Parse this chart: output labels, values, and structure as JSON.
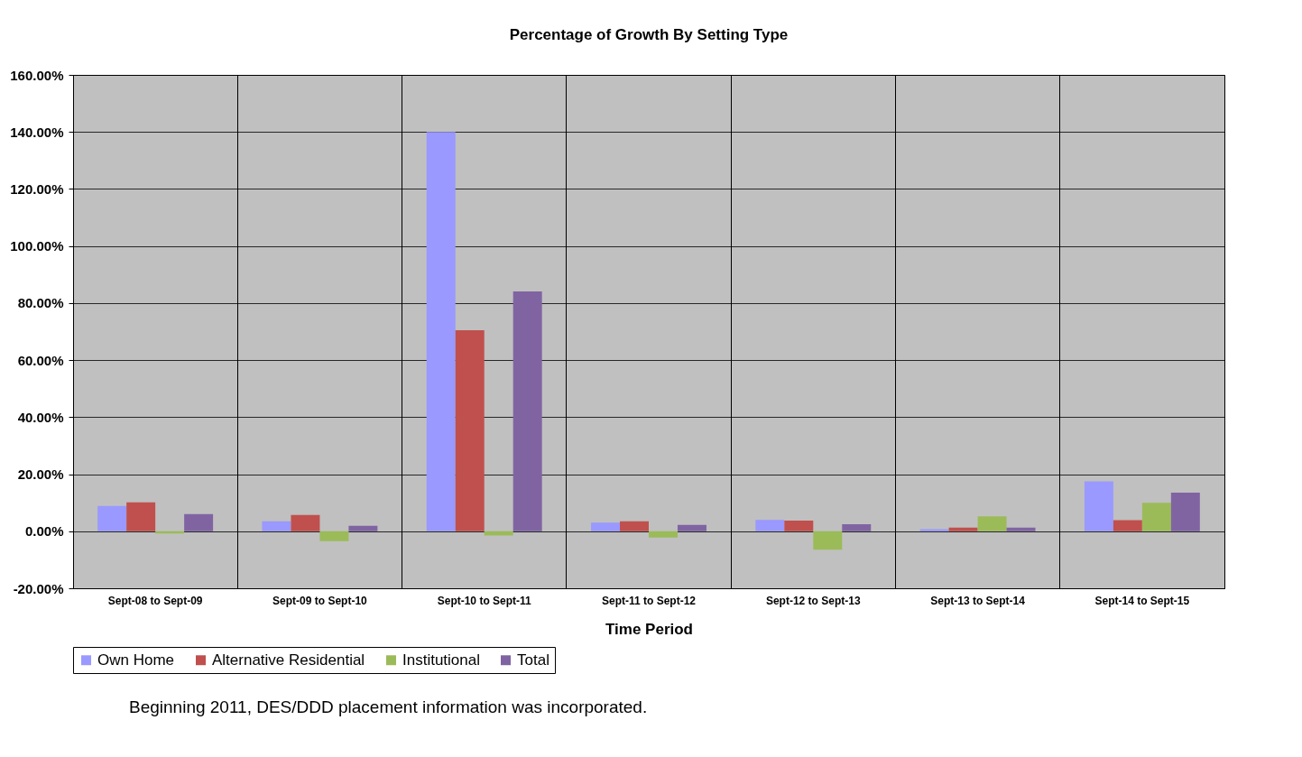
{
  "chart_data": {
    "type": "bar",
    "title": "Percentage of Growth By Setting Type",
    "xlabel": "Time Period",
    "categories": [
      "Sept-08 to Sept-09",
      "Sept-09 to Sept-10",
      "Sept-10 to Sept-11",
      "Sept-11 to Sept-12",
      "Sept-12 to Sept-13",
      "Sept-13 to Sept-14",
      "Sept-14 to Sept-15"
    ],
    "series": [
      {
        "name": "Own Home",
        "color": "#9999ff",
        "values": [
          8.9,
          3.5,
          140,
          3.0,
          4.0,
          0.7,
          17.5
        ]
      },
      {
        "name": "Alternative Residential",
        "color": "#c0504d",
        "values": [
          10.1,
          5.7,
          70.5,
          3.5,
          3.7,
          1.3,
          3.9
        ]
      },
      {
        "name": "Institutional",
        "color": "#9bbb59",
        "values": [
          -0.8,
          -3.5,
          -1.5,
          -2.2,
          -6.5,
          5.2,
          10.0
        ]
      },
      {
        "name": "Total",
        "color": "#8064a2",
        "values": [
          6.0,
          1.9,
          84.1,
          2.2,
          2.5,
          1.3,
          13.5
        ]
      }
    ],
    "ylim": [
      -20,
      160
    ],
    "yticks": [
      {
        "value": -20,
        "label": "-20.00%"
      },
      {
        "value": 0,
        "label": "0.00%"
      },
      {
        "value": 20,
        "label": "20.00%"
      },
      {
        "value": 40,
        "label": "40.00%"
      },
      {
        "value": 60,
        "label": "60.00%"
      },
      {
        "value": 80,
        "label": "80.00%"
      },
      {
        "value": 100,
        "label": "100.00%"
      },
      {
        "value": 120,
        "label": "120.00%"
      },
      {
        "value": 140,
        "label": "140.00%"
      },
      {
        "value": 160,
        "label": "160.00%"
      }
    ],
    "grid": true,
    "legend": "bottom",
    "annotations": [
      "Beginning 2011, DES/DDD placement information was incorporated."
    ]
  }
}
